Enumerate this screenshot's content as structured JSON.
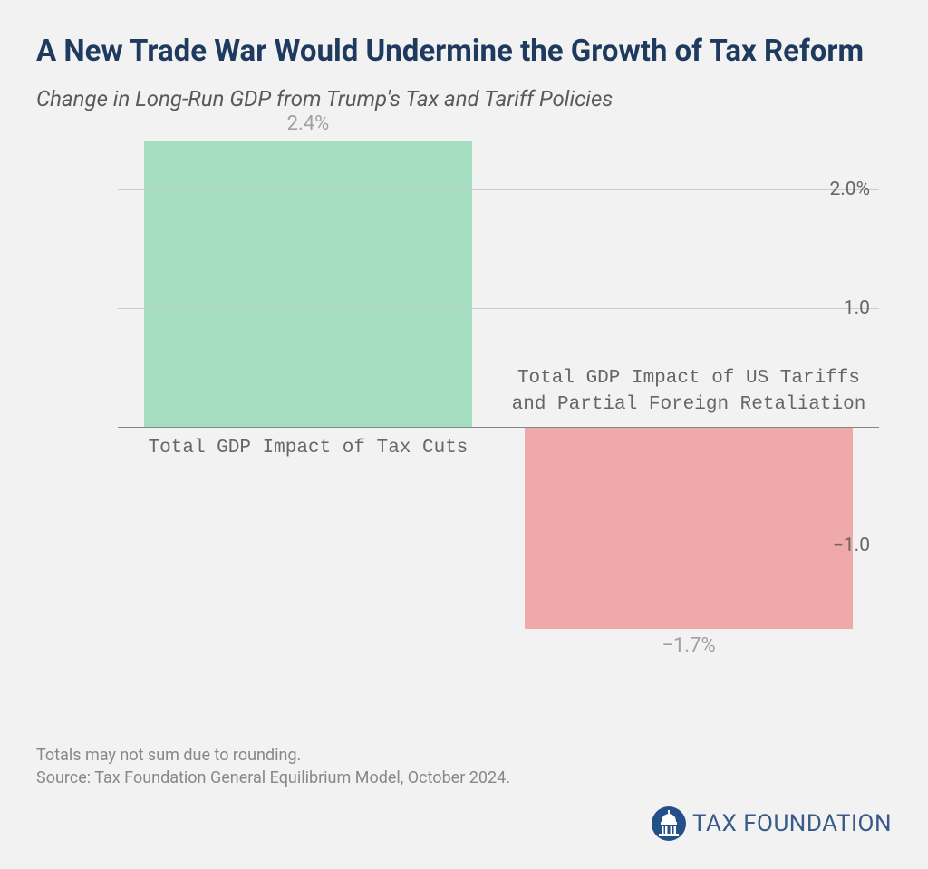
{
  "title": "A New Trade War Would Undermine the Growth of Tax Reform",
  "subtitle": "Change in Long-Run GDP from Trump's Tax and Tariff Policies",
  "chart": {
    "type": "bar",
    "background_color": "#f2f2f2",
    "grid_color": "#cccccc",
    "zero_line_color": "#888888",
    "axis_label_color": "#666666",
    "value_label_color": "#a0a0a0",
    "ylim": [
      -2.0,
      2.5
    ],
    "yticks": [
      {
        "value": 2.0,
        "label": "2.0%"
      },
      {
        "value": 1.0,
        "label": "1.0"
      },
      {
        "value": -1.0,
        "label": "−1.0"
      }
    ],
    "bars": [
      {
        "category": "Total GDP Impact of Tax Cuts",
        "value": 2.4,
        "value_label": "2.4%",
        "color": "#a4ddbf",
        "category_fontfamily": "monospace"
      },
      {
        "category": "Total GDP Impact of US Tariffs and Partial Foreign Retaliation",
        "value": -1.7,
        "value_label": "−1.7%",
        "color": "#f0a9a9",
        "category_fontfamily": "monospace"
      }
    ],
    "title_fontsize": 33,
    "title_color": "#1f3a5f",
    "subtitle_fontsize": 24,
    "subtitle_color": "#5a5a5a",
    "axis_fontsize": 21,
    "value_label_fontsize": 22,
    "category_fontsize": 21
  },
  "footer": {
    "note1": "Totals may not sum due to rounding.",
    "note2": "Source: Tax Foundation General Equilibrium Model, October 2024."
  },
  "logo": {
    "text": "TAX FOUNDATION",
    "icon_color": "#235089",
    "text_color": "#3a5a8a"
  }
}
